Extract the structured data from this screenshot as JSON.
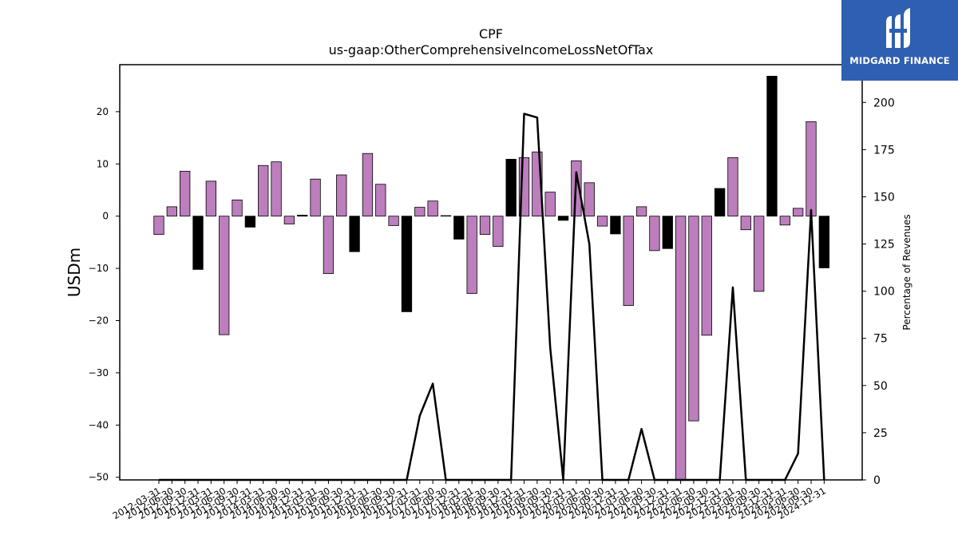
{
  "brand": {
    "name": "MIDGARD FINANCE",
    "bg_color": "#2f5fb0"
  },
  "chart_data": {
    "type": "bar",
    "title": "CPF",
    "subtitle": "us-gaap:OtherComprehensiveIncomeLossNetOfTax",
    "ylabel": "USDm",
    "y2label": "Percentage of Revenues",
    "ylim": [
      -50.5,
      29
    ],
    "y2lim": [
      0,
      220
    ],
    "yticks": [
      20,
      10,
      0,
      -10,
      -20,
      -30,
      -40,
      -50
    ],
    "y2ticks": [
      0,
      25,
      50,
      75,
      100,
      125,
      150,
      175,
      200
    ],
    "colors": {
      "positive": "#bc7ebc",
      "negative": "#bc7ebc",
      "highlight": "#000000",
      "line": "#000000"
    },
    "categories": [
      "2012-03-31",
      "2012-06-30",
      "2012-09-30",
      "2012-12-31",
      "2013-03-31",
      "2013-06-30",
      "2013-09-30",
      "2013-12-31",
      "2014-03-31",
      "2014-06-30",
      "2014-09-30",
      "2014-12-31",
      "2015-03-31",
      "2015-06-30",
      "2015-09-30",
      "2015-12-31",
      "2016-03-31",
      "2016-06-30",
      "2016-09-30",
      "2016-12-31",
      "2017-03-31",
      "2017-06-30",
      "2017-09-30",
      "2017-12-31",
      "2018-03-31",
      "2018-06-30",
      "2018-09-30",
      "2018-12-31",
      "2019-03-31",
      "2019-06-30",
      "2019-09-30",
      "2019-12-31",
      "2020-03-31",
      "2020-06-30",
      "2020-09-30",
      "2020-12-31",
      "2021-03-31",
      "2021-06-30",
      "2021-09-30",
      "2021-12-31",
      "2022-03-31",
      "2022-06-30",
      "2022-09-30",
      "2022-12-31",
      "2023-03-31",
      "2023-06-30",
      "2023-09-30",
      "2023-12-31",
      "2024-03-31",
      "2024-06-30",
      "2024-09-30",
      "2024-12-31"
    ],
    "series": [
      {
        "kind": "bar",
        "axis": "left",
        "values": [
          -3.5,
          1.8,
          8.6,
          -10.2,
          6.7,
          -22.7,
          3.1,
          -2.1,
          9.7,
          10.4,
          -1.5,
          0.2,
          7.1,
          -11.0,
          7.9,
          -6.8,
          12.0,
          6.1,
          -1.8,
          -18.3,
          1.7,
          2.9,
          0.1,
          -4.4,
          -14.8,
          -3.5,
          -5.8,
          10.9,
          11.2,
          12.3,
          4.6,
          -0.8,
          10.6,
          6.4,
          -1.9,
          -3.4,
          -17.1,
          1.8,
          -6.6,
          -6.2,
          -50.5,
          -39.2,
          -22.8,
          5.3,
          11.2,
          -2.6,
          -14.4,
          26.8,
          -1.7,
          1.5,
          18.1,
          -9.9
        ],
        "highlight": [
          false,
          false,
          false,
          true,
          false,
          false,
          false,
          true,
          false,
          false,
          false,
          true,
          false,
          false,
          false,
          true,
          false,
          false,
          false,
          true,
          false,
          false,
          false,
          true,
          false,
          false,
          false,
          true,
          false,
          false,
          false,
          true,
          false,
          false,
          false,
          true,
          false,
          false,
          false,
          true,
          false,
          false,
          false,
          true,
          false,
          false,
          false,
          true,
          false,
          false,
          false,
          true
        ]
      },
      {
        "kind": "line",
        "axis": "right",
        "values": [
          0,
          0,
          0,
          0,
          0,
          0,
          0,
          0,
          0,
          0,
          0,
          0,
          0,
          0,
          0,
          0,
          0,
          0,
          0,
          0,
          34,
          51,
          0,
          0,
          0,
          0,
          0,
          0,
          194,
          192,
          70,
          0,
          163,
          125,
          0,
          0,
          0,
          27,
          0,
          0,
          0,
          0,
          0,
          0,
          102,
          0,
          0,
          0,
          0,
          14,
          143,
          0
        ]
      }
    ]
  }
}
